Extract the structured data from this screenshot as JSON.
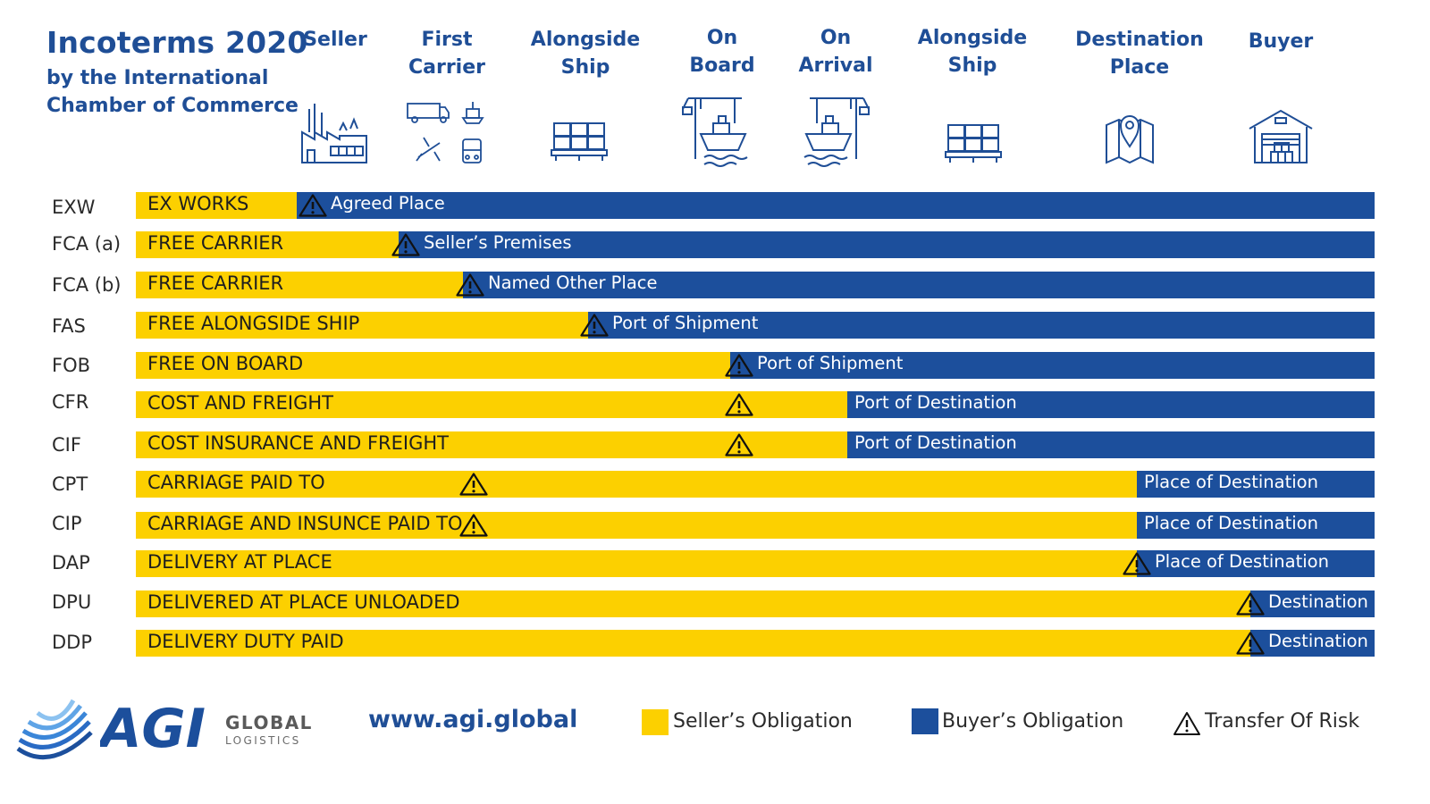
{
  "header": {
    "title": "Incoterms 2020",
    "subtitle": "by the International\nChamber of Commerce"
  },
  "columns": [
    {
      "label": "Seller",
      "icon": "factory-icon"
    },
    {
      "label": "First\nCarrier",
      "icon": "transport-modes-icon"
    },
    {
      "label": "Alongside\nShip",
      "icon": "pallet-boxes-icon"
    },
    {
      "label": "On\nBoard",
      "icon": "crane-ship-icon"
    },
    {
      "label": "On\nArrival",
      "icon": "crane-ship-icon"
    },
    {
      "label": "Alongside\nShip",
      "icon": "pallet-boxes-icon"
    },
    {
      "label": "Destination\nPlace",
      "icon": "map-pin-icon"
    },
    {
      "label": "Buyer",
      "icon": "warehouse-icon"
    }
  ],
  "rows": [
    {
      "code": "EXW",
      "term": "EX WORKS",
      "place": "Agreed Place",
      "transfer_fraction": 0.13,
      "risk_fraction": 0.143
    },
    {
      "code": "FCA (a)",
      "term": "FREE CARRIER",
      "place": "Seller’s Premises",
      "transfer_fraction": 0.212,
      "risk_fraction": 0.218
    },
    {
      "code": "FCA (b)",
      "term": "FREE CARRIER",
      "place": "Named Other Place",
      "transfer_fraction": 0.264,
      "risk_fraction": 0.27
    },
    {
      "code": "FAS",
      "term": "FREE ALONGSIDE SHIP",
      "place": "Port of Shipment",
      "transfer_fraction": 0.365,
      "risk_fraction": 0.37
    },
    {
      "code": "FOB",
      "term": "FREE ON BOARD",
      "place": "Port of Shipment",
      "transfer_fraction": 0.48,
      "risk_fraction": 0.487
    },
    {
      "code": "CFR",
      "term": "COST AND FREIGHT",
      "place": "Port of Destination",
      "transfer_fraction": 0.574,
      "risk_fraction": 0.487
    },
    {
      "code": "CIF",
      "term": "COST INSURANCE AND FREIGHT",
      "place": "Port of Destination",
      "transfer_fraction": 0.574,
      "risk_fraction": 0.487
    },
    {
      "code": "CPT",
      "term": "CARRIAGE PAID TO",
      "place": "Place of Destination",
      "transfer_fraction": 0.808,
      "risk_fraction": 0.273
    },
    {
      "code": "CIP",
      "term": "CARRIAGE AND INSUNCE PAID TO",
      "place": "Place of Destination",
      "transfer_fraction": 0.808,
      "risk_fraction": 0.273
    },
    {
      "code": "DAP",
      "term": "DELIVERY AT PLACE",
      "place": "Place of Destination",
      "transfer_fraction": 0.808,
      "risk_fraction": 0.808
    },
    {
      "code": "DPU",
      "term": "DELIVERED AT PLACE UNLOADED",
      "place": "Destination",
      "transfer_fraction": 0.9,
      "risk_fraction": 0.9
    },
    {
      "code": "DDP",
      "term": "DELIVERY DUTY PAID",
      "place": "Destination",
      "transfer_fraction": 0.9,
      "risk_fraction": 0.9
    }
  ],
  "footer": {
    "logo_text": "AGI",
    "logo_global": "GLOBAL",
    "logo_logistics": "LOGISTICS",
    "website": "www.agi.global"
  },
  "legend": {
    "seller": "Seller’s Obligation",
    "buyer": "Buyer’s Obligation",
    "risk": "Transfer Of Risk"
  },
  "colors": {
    "seller": "#fcd000",
    "buyer": "#1c4f9c",
    "heading": "#1f4e96"
  }
}
